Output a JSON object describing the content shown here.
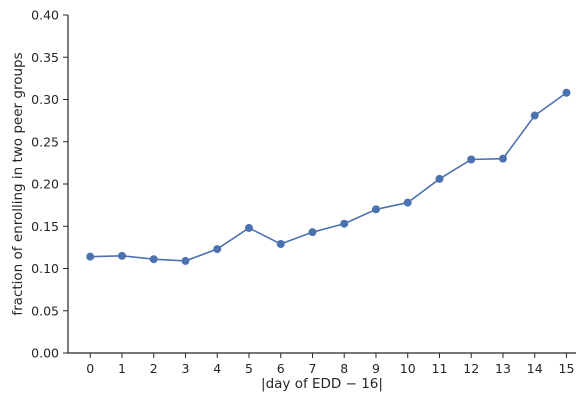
{
  "chart_data": {
    "type": "line",
    "title": "",
    "xlabel": "|day of EDD − 16|",
    "ylabel": "fraction of enrolling in two peer groups",
    "x": [
      0,
      1,
      2,
      3,
      4,
      5,
      6,
      7,
      8,
      9,
      10,
      11,
      12,
      13,
      14,
      15
    ],
    "x_tick_labels": [
      "0",
      "1",
      "2",
      "3",
      "4",
      "5",
      "6",
      "7",
      "8",
      "9",
      "10",
      "11",
      "12",
      "13",
      "14",
      "15"
    ],
    "y_ticks": [
      0.0,
      0.05,
      0.1,
      0.15,
      0.2,
      0.25,
      0.3,
      0.35,
      0.4
    ],
    "y_tick_labels": [
      "0.00",
      "0.05",
      "0.10",
      "0.15",
      "0.20",
      "0.25",
      "0.30",
      "0.35",
      "0.40"
    ],
    "ylim": [
      0.0,
      0.4
    ],
    "xlim": [
      -0.7,
      15.3
    ],
    "grid": false,
    "series": [
      {
        "color": "#4c72b0",
        "values": [
          0.114,
          0.115,
          0.111,
          0.109,
          0.123,
          0.148,
          0.129,
          0.143,
          0.153,
          0.17,
          0.178,
          0.206,
          0.229,
          0.23,
          0.281,
          0.308
        ]
      }
    ]
  }
}
